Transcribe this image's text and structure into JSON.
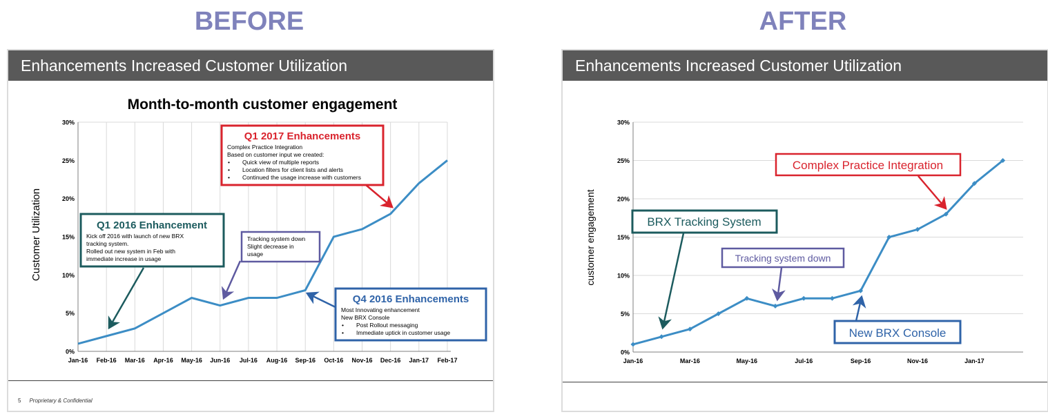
{
  "before": {
    "heading": "BEFORE",
    "slide_title": "Enhancements Increased Customer Utilization",
    "footer_page": "5",
    "footer_text": "Proprietary & Confidential",
    "callouts": {
      "q1_2016": {
        "title": "Q1 2016 Enhancement",
        "lines": [
          "Kick off 2016 with launch of new BRX",
          "tracking system.",
          "Rolled out new system in Feb with",
          "immediate increase in usage"
        ]
      },
      "tracking": {
        "lines": [
          "Tracking system down",
          "Slight decrease in",
          "usage"
        ]
      },
      "q1_2017": {
        "title": "Q1 2017 Enhancements",
        "lines": [
          "Complex Practice Integration",
          "Based on customer input we created:"
        ],
        "bullets": [
          "Quick view of multiple reports",
          "Location filters for client lists and alerts",
          "Continued the usage increase with customers"
        ]
      },
      "q4_2016": {
        "title": "Q4 2016 Enhancements",
        "lines": [
          "Most Innovating  enhancement",
          "New BRX Console"
        ],
        "bullets": [
          "Post Rollout messaging",
          "Immediate uptick in customer usage"
        ]
      }
    }
  },
  "after": {
    "heading": "AFTER",
    "slide_title": "Enhancements Increased Customer Utilization",
    "callouts": {
      "brx_tracking": "BRX Tracking System",
      "tracking_down": "Tracking system down",
      "complex": "Complex Practice Integration",
      "console": "New BRX Console"
    }
  },
  "colors": {
    "line": "#3c8dc5",
    "teal": "#1c5b5e",
    "purple": "#5e5aa0",
    "red": "#d9232d",
    "blue": "#2f63a8",
    "heading": "#7f82bb",
    "grid": "#d9d9d9"
  },
  "chart_data": [
    {
      "type": "line",
      "title": "Month-to-month customer engagement",
      "xlabel": "",
      "ylabel": "Customer Utilization",
      "categories": [
        "Jan-16",
        "Feb-16",
        "Mar-16",
        "Apr-16",
        "May-16",
        "Jun-16",
        "Jul-16",
        "Aug-16",
        "Sep-16",
        "Oct-16",
        "Nov-16",
        "Dec-16",
        "Jan-17",
        "Feb-17"
      ],
      "tick_labels": [
        "Jan-16",
        "Feb-16",
        "Mar-16",
        "Apr-16",
        "May-16",
        "Jun-16",
        "Jul-16",
        "Aug-16",
        "Sep-16",
        "Oct-16",
        "Nov-16",
        "Dec-16",
        "Jan-17",
        "Feb-17"
      ],
      "values": [
        1,
        2,
        3,
        5,
        7,
        6,
        7,
        7,
        8,
        15,
        16,
        18,
        22,
        25
      ],
      "ylim": [
        0,
        30
      ],
      "yticks": [
        "0%",
        "5%",
        "10%",
        "15%",
        "20%",
        "25%",
        "30%"
      ],
      "grid": "vertical",
      "markers": false
    },
    {
      "type": "line",
      "title": "",
      "xlabel": "",
      "ylabel": "customer engagement",
      "categories": [
        "Jan-16",
        "Feb-16",
        "Mar-16",
        "Apr-16",
        "May-16",
        "Jun-16",
        "Jul-16",
        "Aug-16",
        "Sep-16",
        "Oct-16",
        "Nov-16",
        "Dec-16",
        "Jan-17",
        "Feb-17"
      ],
      "tick_labels": [
        "Jan-16",
        "",
        "Mar-16",
        "",
        "May-16",
        "",
        "Jul-16",
        "",
        "Sep-16",
        "",
        "Nov-16",
        "",
        "Jan-17",
        ""
      ],
      "values": [
        1,
        2,
        3,
        5,
        7,
        6,
        7,
        7,
        8,
        15,
        16,
        18,
        22,
        25
      ],
      "ylim": [
        0,
        30
      ],
      "yticks": [
        "0%",
        "5%",
        "10%",
        "15%",
        "20%",
        "25%",
        "30%"
      ],
      "grid": "horizontal",
      "markers": true
    }
  ]
}
